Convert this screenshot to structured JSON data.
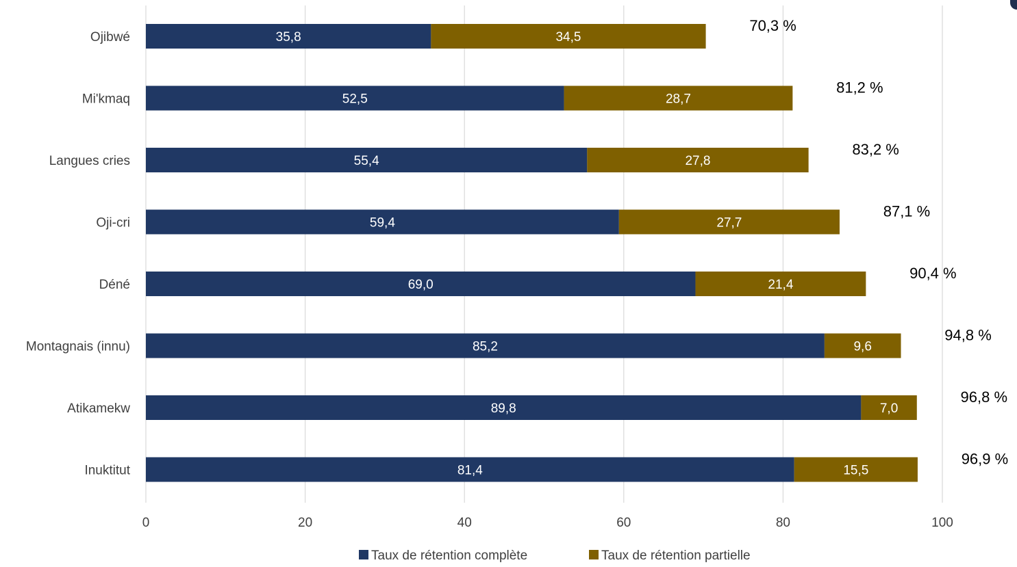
{
  "chart_data": {
    "type": "bar",
    "orientation": "horizontal",
    "stacked": true,
    "categories": [
      "Ojibwé",
      "Mi'kmaq",
      "Langues cries",
      "Oji-cri",
      "Déné",
      "Montagnais (innu)",
      "Atikamekw",
      "Inuktitut"
    ],
    "series": [
      {
        "name": "Taux de rétention complète",
        "color": "#203864",
        "values": [
          35.8,
          52.5,
          55.4,
          59.4,
          69.0,
          85.2,
          89.8,
          81.4
        ],
        "labels": [
          "35,8",
          "52,5",
          "55,4",
          "59,4",
          "69,0",
          "85,2",
          "89,8",
          "81,4"
        ]
      },
      {
        "name": "Taux de rétention partielle",
        "color": "#7f6000",
        "values": [
          34.5,
          28.7,
          27.8,
          27.7,
          21.4,
          9.6,
          7.0,
          15.5
        ],
        "labels": [
          "34,5",
          "28,7",
          "27,8",
          "27,7",
          "21,4",
          "9,6",
          "7,0",
          "15,5"
        ]
      }
    ],
    "totals": [
      70.3,
      81.2,
      83.2,
      87.1,
      90.4,
      94.8,
      96.8,
      96.9
    ],
    "total_labels": [
      "70,3 %",
      "81,2 %",
      "83,2 %",
      "87,1 %",
      "90,4 %",
      "94,8 %",
      "96,8 %",
      "96,9 %"
    ],
    "xlim": [
      0,
      100
    ],
    "xticks": [
      0,
      20,
      40,
      60,
      80,
      100
    ],
    "xtick_labels": [
      "0",
      "20",
      "40",
      "60",
      "80",
      "100"
    ],
    "grid": "vertical",
    "legend_position": "bottom",
    "title": "",
    "xlabel": "",
    "ylabel": ""
  }
}
